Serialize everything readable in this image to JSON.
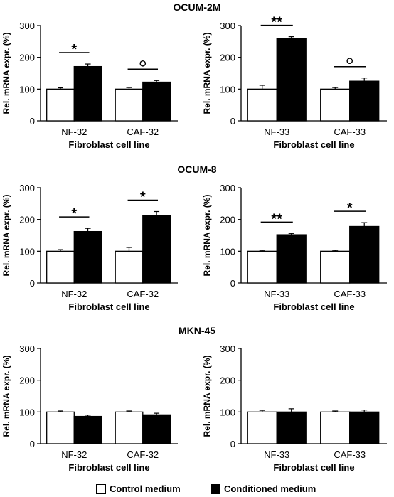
{
  "chart_data": [
    {
      "type": "bar",
      "title": "OCUM-2M",
      "categories": [
        "NF-32",
        "CAF-32"
      ],
      "series": [
        {
          "name": "Control medium",
          "values": [
            100,
            100
          ],
          "errors": [
            4,
            5
          ]
        },
        {
          "name": "Conditioned medium",
          "values": [
            171,
            122
          ],
          "errors": [
            8,
            5
          ]
        }
      ],
      "significance": [
        "*",
        "o"
      ],
      "xlabel": "Fibroblast cell line",
      "ylabel": "Rel. mRNA expr. (%)",
      "ylim": [
        0,
        300
      ],
      "yticks": [
        0,
        100,
        200,
        300
      ]
    },
    {
      "type": "bar",
      "title": "",
      "categories": [
        "NF-33",
        "CAF-33"
      ],
      "series": [
        {
          "name": "Control medium",
          "values": [
            100,
            100
          ],
          "errors": [
            12,
            5
          ]
        },
        {
          "name": "Conditioned medium",
          "values": [
            260,
            125
          ],
          "errors": [
            5,
            10
          ]
        }
      ],
      "significance": [
        "**",
        "o"
      ],
      "xlabel": "Fibroblast cell line",
      "ylabel": "Rel. mRNA expr. (%)",
      "ylim": [
        0,
        300
      ],
      "yticks": [
        0,
        100,
        200,
        300
      ]
    },
    {
      "type": "bar",
      "title": "OCUM-8",
      "categories": [
        "NF-32",
        "CAF-32"
      ],
      "series": [
        {
          "name": "Control medium",
          "values": [
            100,
            100
          ],
          "errors": [
            5,
            12
          ]
        },
        {
          "name": "Conditioned medium",
          "values": [
            162,
            213
          ],
          "errors": [
            10,
            12
          ]
        }
      ],
      "significance": [
        "*",
        "*"
      ],
      "xlabel": "Fibroblast cell line",
      "ylabel": "Rel. mRNA expr. (%)",
      "ylim": [
        0,
        300
      ],
      "yticks": [
        0,
        100,
        200,
        300
      ]
    },
    {
      "type": "bar",
      "title": "",
      "categories": [
        "NF-33",
        "CAF-33"
      ],
      "series": [
        {
          "name": "Control medium",
          "values": [
            100,
            100
          ],
          "errors": [
            3,
            3
          ]
        },
        {
          "name": "Conditioned medium",
          "values": [
            152,
            178
          ],
          "errors": [
            4,
            12
          ]
        }
      ],
      "significance": [
        "**",
        "*"
      ],
      "xlabel": "Fibroblast cell line",
      "ylabel": "Rel. mRNA expr. (%)",
      "ylim": [
        0,
        300
      ],
      "yticks": [
        0,
        100,
        200,
        300
      ]
    },
    {
      "type": "bar",
      "title": "MKN-45",
      "categories": [
        "NF-32",
        "CAF-32"
      ],
      "series": [
        {
          "name": "Control medium",
          "values": [
            100,
            100
          ],
          "errors": [
            3,
            3
          ]
        },
        {
          "name": "Conditioned medium",
          "values": [
            86,
            91
          ],
          "errors": [
            4,
            5
          ]
        }
      ],
      "significance": [
        "",
        ""
      ],
      "xlabel": "Fibroblast cell line",
      "ylabel": "Rel. mRNA expr. (%)",
      "ylim": [
        0,
        300
      ],
      "yticks": [
        0,
        100,
        200,
        300
      ]
    },
    {
      "type": "bar",
      "title": "",
      "categories": [
        "NF-33",
        "CAF-33"
      ],
      "series": [
        {
          "name": "Control medium",
          "values": [
            100,
            100
          ],
          "errors": [
            5,
            3
          ]
        },
        {
          "name": "Conditioned medium",
          "values": [
            100,
            100
          ],
          "errors": [
            10,
            6
          ]
        }
      ],
      "significance": [
        "",
        ""
      ],
      "xlabel": "Fibroblast cell line",
      "ylabel": "Rel. mRNA expr. (%)",
      "ylim": [
        0,
        300
      ],
      "yticks": [
        0,
        100,
        200,
        300
      ]
    }
  ],
  "legend": {
    "items": [
      {
        "label": "Control medium",
        "color": "#ffffff"
      },
      {
        "label": "Conditioned medium",
        "color": "#000000"
      }
    ]
  }
}
